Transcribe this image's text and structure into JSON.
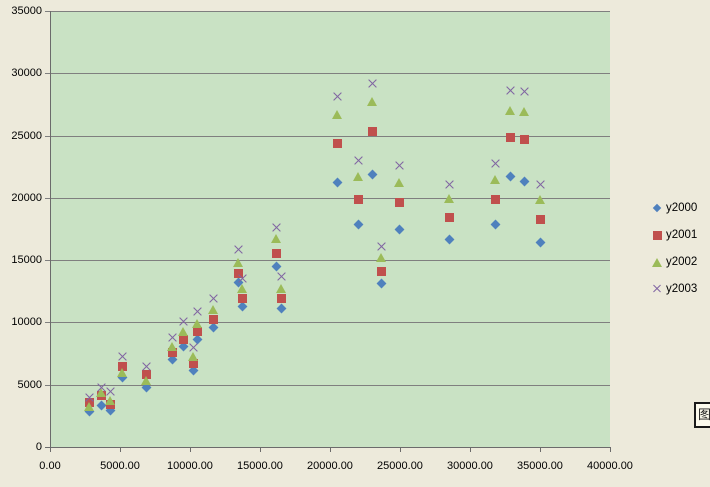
{
  "page": {
    "background": "#edeadb",
    "plot_background": "#c9e2c4",
    "gridline_color": "#7f7f7f"
  },
  "chart_data": {
    "type": "scatter",
    "title": "",
    "xlabel": "",
    "ylabel": "",
    "grid": "horizontal",
    "legend_position": "right",
    "x_axis": {
      "min": 0,
      "max": 40000,
      "step": 5000,
      "tick_values": [
        0,
        5000,
        10000,
        15000,
        20000,
        25000,
        30000,
        35000,
        40000
      ],
      "tick_labels": [
        "0.00",
        "5000.00",
        "10000.00",
        "15000.00",
        "20000.00",
        "25000.00",
        "30000.00",
        "35000.00",
        "40000.00"
      ]
    },
    "y_axis": {
      "min": 0,
      "max": 35000,
      "step": 5000,
      "tick_values": [
        0,
        5000,
        10000,
        15000,
        20000,
        25000,
        30000,
        35000
      ],
      "tick_labels": [
        "0",
        "5000",
        "10000",
        "15000",
        "20000",
        "25000",
        "30000",
        "35000"
      ]
    },
    "series": [
      {
        "name": "y2000",
        "marker": "diamond",
        "color": "#4f81bd",
        "points": [
          [
            2800,
            2850
          ],
          [
            3700,
            3350
          ],
          [
            4300,
            2900
          ],
          [
            5200,
            5600
          ],
          [
            6900,
            4800
          ],
          [
            8750,
            7050
          ],
          [
            9550,
            8050
          ],
          [
            10250,
            6150
          ],
          [
            10550,
            8650
          ],
          [
            11700,
            9600
          ],
          [
            13450,
            13200
          ],
          [
            13750,
            11300
          ],
          [
            16200,
            14500
          ],
          [
            16500,
            11150
          ],
          [
            20500,
            21250
          ],
          [
            22000,
            17850
          ],
          [
            23000,
            21900
          ],
          [
            23650,
            13150
          ],
          [
            24950,
            17450
          ],
          [
            28550,
            16650
          ],
          [
            31850,
            17850
          ],
          [
            32900,
            21750
          ],
          [
            33900,
            21300
          ],
          [
            35000,
            16400
          ]
        ]
      },
      {
        "name": "y2001",
        "marker": "square",
        "color": "#c0504d",
        "points": [
          [
            2800,
            3550
          ],
          [
            3700,
            4100
          ],
          [
            4300,
            3400
          ],
          [
            5200,
            6500
          ],
          [
            6900,
            5850
          ],
          [
            8750,
            7550
          ],
          [
            9550,
            8600
          ],
          [
            10250,
            6700
          ],
          [
            10550,
            9250
          ],
          [
            11700,
            10250
          ],
          [
            13450,
            13950
          ],
          [
            13750,
            11900
          ],
          [
            16200,
            15550
          ],
          [
            16500,
            11950
          ],
          [
            20500,
            24350
          ],
          [
            22000,
            19900
          ],
          [
            23000,
            25300
          ],
          [
            23650,
            14050
          ],
          [
            24950,
            19600
          ],
          [
            28550,
            18450
          ],
          [
            31850,
            19900
          ],
          [
            32900,
            24850
          ],
          [
            33900,
            24700
          ],
          [
            35000,
            18300
          ]
        ]
      },
      {
        "name": "y2002",
        "marker": "triangle",
        "color": "#9bbb59",
        "points": [
          [
            2800,
            3250
          ],
          [
            3700,
            4400
          ],
          [
            4300,
            3700
          ],
          [
            5200,
            6000
          ],
          [
            6900,
            5300
          ],
          [
            8750,
            8100
          ],
          [
            9550,
            9300
          ],
          [
            10250,
            7300
          ],
          [
            10550,
            9900
          ],
          [
            11700,
            11000
          ],
          [
            13450,
            14850
          ],
          [
            13750,
            12700
          ],
          [
            16200,
            16700
          ],
          [
            16500,
            12750
          ],
          [
            20500,
            26700
          ],
          [
            22000,
            21700
          ],
          [
            23000,
            27700
          ],
          [
            23650,
            15200
          ],
          [
            24950,
            21200
          ],
          [
            28550,
            19950
          ],
          [
            31850,
            21500
          ],
          [
            32900,
            27050
          ],
          [
            33900,
            26900
          ],
          [
            35000,
            19900
          ]
        ]
      },
      {
        "name": "y2003",
        "marker": "x",
        "color": "#8064a2",
        "points": [
          [
            2800,
            3950
          ],
          [
            3700,
            4800
          ],
          [
            4300,
            4450
          ],
          [
            5200,
            7250
          ],
          [
            6900,
            6450
          ],
          [
            8750,
            8800
          ],
          [
            9550,
            10100
          ],
          [
            10250,
            8000
          ],
          [
            10550,
            10900
          ],
          [
            11700,
            11950
          ],
          [
            13450,
            15850
          ],
          [
            13750,
            13550
          ],
          [
            16200,
            17650
          ],
          [
            16500,
            13650
          ],
          [
            20500,
            28100
          ],
          [
            22000,
            23000
          ],
          [
            23000,
            29200
          ],
          [
            23650,
            16100
          ],
          [
            24950,
            22600
          ],
          [
            28550,
            21100
          ],
          [
            31850,
            22750
          ],
          [
            32900,
            28600
          ],
          [
            33900,
            28500
          ],
          [
            35000,
            21100
          ]
        ]
      }
    ]
  },
  "legend": {
    "items": [
      {
        "label": "y2000"
      },
      {
        "label": "y2001"
      },
      {
        "label": "y2002"
      },
      {
        "label": "y2003"
      }
    ]
  },
  "widget_button": {
    "glyph": "图"
  }
}
